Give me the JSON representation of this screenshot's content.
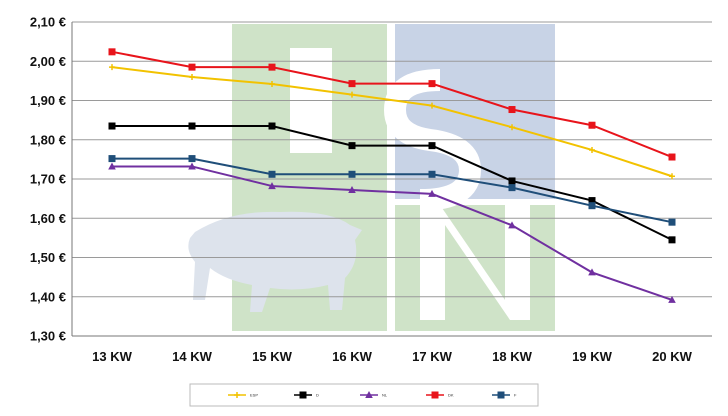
{
  "chart_data": {
    "type": "line",
    "categories": [
      "13 KW",
      "14 KW",
      "15 KW",
      "16 KW",
      "17 KW",
      "18 KW",
      "19 KW",
      "20 KW"
    ],
    "y_tick_labels": [
      "1,30 €",
      "1,40 €",
      "1,50 €",
      "1,60 €",
      "1,70 €",
      "1,80 €",
      "1,90 €",
      "2,00 €",
      "2,10 €"
    ],
    "ylim": [
      1.3,
      2.1
    ],
    "ystep": 0.1,
    "grid": true,
    "legend_position": "bottom",
    "series": [
      {
        "name": "ESP",
        "color": "#f2c200",
        "marker": "plus",
        "values": [
          1.985,
          1.96,
          1.942,
          1.915,
          1.887,
          1.832,
          1.774,
          1.707
        ]
      },
      {
        "name": "D",
        "color": "#000000",
        "marker": "square",
        "values": [
          1.835,
          1.835,
          1.835,
          1.785,
          1.785,
          1.695,
          1.645,
          1.545
        ]
      },
      {
        "name": "NL",
        "color": "#7030a0",
        "marker": "triangle",
        "values": [
          1.732,
          1.732,
          1.682,
          1.672,
          1.662,
          1.582,
          1.462,
          1.392
        ]
      },
      {
        "name": "DK",
        "color": "#e8141b",
        "marker": "square",
        "values": [
          2.024,
          1.985,
          1.985,
          1.943,
          1.943,
          1.877,
          1.837,
          1.756
        ]
      },
      {
        "name": "F",
        "color": "#1f4e79",
        "marker": "square",
        "values": [
          1.752,
          1.752,
          1.712,
          1.712,
          1.712,
          1.678,
          1.632,
          1.59
        ]
      }
    ]
  },
  "watermark": {
    "letters": [
      "I",
      "S",
      "N"
    ],
    "colors": {
      "green": "#cfe3c8",
      "blue": "#c8d3e6",
      "pig": "#dde3ec"
    }
  }
}
